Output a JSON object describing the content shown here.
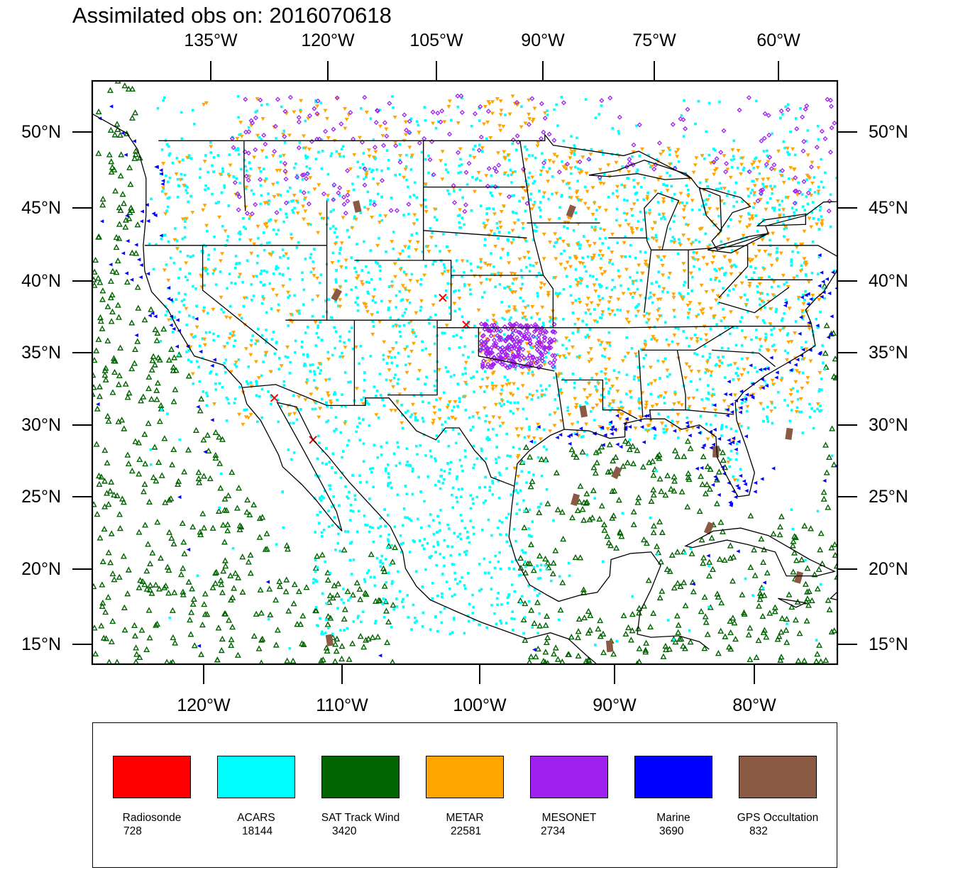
{
  "title": "Assimilated obs on: 2016070618",
  "map": {
    "top_lon_labels": [
      "135°W",
      "120°W",
      "105°W",
      "90°W",
      "75°W",
      "60°W"
    ],
    "bottom_lon_labels": [
      "120°W",
      "110°W",
      "100°W",
      "90°W",
      "80°W"
    ],
    "left_lat_labels": [
      "50°N",
      "45°N",
      "40°N",
      "35°N",
      "30°N",
      "25°N",
      "20°N",
      "15°N"
    ],
    "right_lat_labels": [
      "50°N",
      "45°N",
      "40°N",
      "35°N",
      "30°N",
      "25°N",
      "20°N",
      "15°N"
    ],
    "extent": {
      "lon_min": -128,
      "lon_max": -74,
      "lat_min": 14,
      "lat_max": 53
    }
  },
  "legend": [
    {
      "name": "Radiosonde",
      "count": "728",
      "color": "#ff0000",
      "marker": "x-icon"
    },
    {
      "name": "ACARS",
      "count": "18144",
      "color": "#00ffff",
      "marker": "square-dot-icon"
    },
    {
      "name": "SAT Track Wind",
      "count": "3420",
      "color": "#006400",
      "marker": "triangle-up-icon"
    },
    {
      "name": "METAR",
      "count": "22581",
      "color": "#ffa500",
      "marker": "triangle-down-icon"
    },
    {
      "name": "MESONET",
      "count": "2734",
      "color": "#a020f0",
      "marker": "diamond-icon"
    },
    {
      "name": "Marine",
      "count": "3690",
      "color": "#0000ff",
      "marker": "triangle-left-icon"
    },
    {
      "name": "GPS Occultation",
      "count": "832",
      "color": "#8b5a45",
      "marker": "bar-icon"
    }
  ]
}
